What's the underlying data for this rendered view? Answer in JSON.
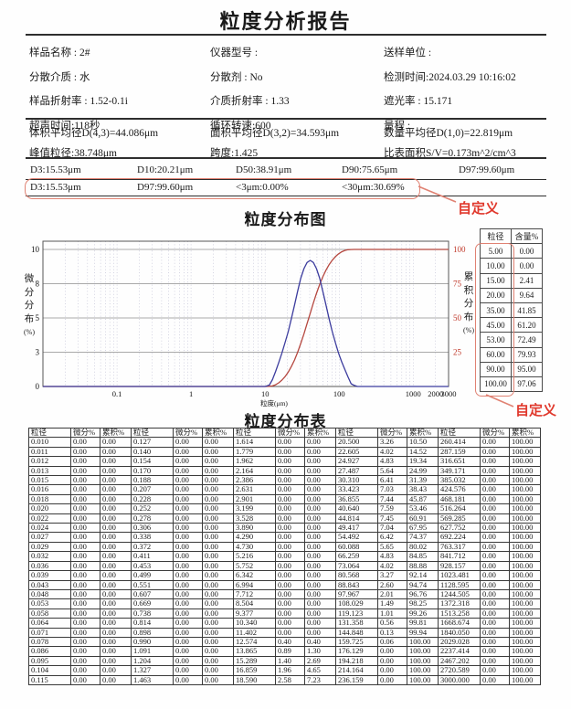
{
  "report": {
    "title": "粒度分析报告",
    "info_grid": [
      [
        "样品名称 : 2#",
        "仪器型号 :",
        "送样单位 :"
      ],
      [
        "分散介质 : 水",
        "分散剂 : No",
        "检测时间:2024.03.29 10:16:02"
      ],
      [
        "样品折射率 : 1.52-0.1i",
        "介质折射率 : 1.33",
        "遮光率 : 15.171"
      ],
      [
        "超声时间:118秒",
        "循环转速:600",
        "量程 :"
      ]
    ],
    "averages_grid": [
      [
        "体积平均径D(4,3)=44.086μm",
        "面积平均径D(3,2)=34.593μm",
        "数量平均径D(1,0)=22.819μm"
      ],
      [
        "峰值粒径:38.748μm",
        "跨度:1.425",
        "比表面积S/V=0.173m^2/cm^3"
      ]
    ],
    "d_values": [
      "D3:15.53μm",
      "D10:20.21μm",
      "D50:38.91μm",
      "D90:75.65μm",
      "D97:99.60μm"
    ],
    "custom_row": {
      "values": [
        "D3:15.53μm",
        "D97:99.60μm",
        "<3μm:0.00%",
        "<30μm:30.69%"
      ],
      "annotation": "自定义",
      "annotation_color": "#e0382c",
      "box_color": "#e08273"
    },
    "chart_section_title": "粒度分布图",
    "table_section_title": "粒度分布表"
  },
  "chart_data": {
    "type": "line",
    "x_axis": {
      "label": "粒度(μm)",
      "scale": "log",
      "min": 0.01,
      "max": 3000,
      "ticks": [
        "0.1",
        "1",
        "10",
        "100",
        "1000",
        "2000",
        "3000"
      ]
    },
    "y_left": {
      "label": "微分分布(%)",
      "min": 0,
      "max": 10,
      "ticks": [
        [
          "0",
          0
        ],
        [
          "3",
          0.25
        ],
        [
          "5",
          0.5
        ],
        [
          "8",
          0.75
        ],
        [
          "10",
          1
        ]
      ]
    },
    "y_right": {
      "label": "累积分布(%)",
      "min": 0,
      "max": 100,
      "color": "#c0392b",
      "ticks": [
        [
          "25",
          0.25
        ],
        [
          "50",
          0.5
        ],
        [
          "75",
          0.75
        ],
        [
          "100",
          1
        ]
      ]
    },
    "series": [
      {
        "name": "cumulative",
        "axis": "right",
        "color": "#b5473f",
        "points": [
          [
            0.01,
            0
          ],
          [
            10,
            0
          ],
          [
            11.4,
            0.1
          ],
          [
            12.57,
            0.4
          ],
          [
            13.87,
            1.3
          ],
          [
            15.29,
            2.69
          ],
          [
            16.86,
            4.65
          ],
          [
            18.59,
            7.23
          ],
          [
            20.5,
            10.5
          ],
          [
            22.61,
            14.52
          ],
          [
            24.93,
            19.34
          ],
          [
            27.49,
            24.99
          ],
          [
            30.31,
            31.39
          ],
          [
            33.42,
            38.43
          ],
          [
            36.86,
            45.87
          ],
          [
            40.64,
            53.46
          ],
          [
            44.81,
            60.91
          ],
          [
            49.42,
            67.95
          ],
          [
            54.49,
            74.37
          ],
          [
            60.09,
            80.02
          ],
          [
            66.26,
            84.85
          ],
          [
            73.06,
            88.88
          ],
          [
            80.57,
            92.14
          ],
          [
            88.84,
            94.74
          ],
          [
            97.97,
            96.76
          ],
          [
            108.03,
            98.25
          ],
          [
            119.12,
            99.26
          ],
          [
            131.36,
            99.81
          ],
          [
            144.85,
            99.94
          ],
          [
            159.73,
            100
          ],
          [
            3000,
            100
          ]
        ]
      },
      {
        "name": "differential",
        "axis": "left",
        "color": "#3c3c9e",
        "points": [
          [
            0.01,
            0
          ],
          [
            10,
            0
          ],
          [
            11.4,
            0.1
          ],
          [
            12.57,
            0.5
          ],
          [
            13.87,
            1.1
          ],
          [
            15.29,
            1.75
          ],
          [
            16.86,
            2.45
          ],
          [
            18.59,
            3.2
          ],
          [
            20.5,
            4.0
          ],
          [
            22.61,
            4.95
          ],
          [
            24.93,
            5.95
          ],
          [
            27.49,
            6.95
          ],
          [
            30.31,
            7.9
          ],
          [
            33.42,
            8.6
          ],
          [
            36.86,
            9.05
          ],
          [
            40.64,
            9.2
          ],
          [
            44.81,
            9.05
          ],
          [
            49.42,
            8.6
          ],
          [
            54.49,
            7.9
          ],
          [
            60.09,
            6.95
          ],
          [
            66.26,
            5.95
          ],
          [
            73.06,
            4.95
          ],
          [
            80.57,
            4.0
          ],
          [
            88.84,
            3.2
          ],
          [
            97.97,
            2.45
          ],
          [
            108.03,
            1.8
          ],
          [
            119.12,
            1.25
          ],
          [
            131.36,
            0.7
          ],
          [
            144.85,
            0.2
          ],
          [
            159.73,
            0.08
          ],
          [
            176.13,
            0
          ],
          [
            3000,
            0
          ]
        ]
      }
    ]
  },
  "side_table": {
    "headers": [
      "粒径",
      "含量%"
    ],
    "rows": [
      [
        "5.00",
        "0.00"
      ],
      [
        "10.00",
        "0.00"
      ],
      [
        "15.00",
        "2.41"
      ],
      [
        "20.00",
        "9.64"
      ],
      [
        "35.00",
        "41.85"
      ],
      [
        "45.00",
        "61.20"
      ],
      [
        "53.00",
        "72.49"
      ],
      [
        "60.00",
        "79.93"
      ],
      [
        "90.00",
        "95.00"
      ],
      [
        "100.00",
        "97.06"
      ]
    ],
    "annotation": "自定义"
  },
  "distribution_table": {
    "column_headers": [
      "粒径",
      "微分%",
      "累积%"
    ],
    "groups": [
      {
        "sizes": [
          "0.010",
          "0.011",
          "0.012",
          "0.013",
          "0.015",
          "0.016",
          "0.018",
          "0.020",
          "0.022",
          "0.024",
          "0.027",
          "0.029",
          "0.032",
          "0.036",
          "0.039",
          "0.043",
          "0.048",
          "0.053",
          "0.058",
          "0.064",
          "0.071",
          "0.078",
          "0.086",
          "0.095",
          "0.104",
          "0.115"
        ],
        "diff": [
          "0.00",
          "0.00",
          "0.00",
          "0.00",
          "0.00",
          "0.00",
          "0.00",
          "0.00",
          "0.00",
          "0.00",
          "0.00",
          "0.00",
          "0.00",
          "0.00",
          "0.00",
          "0.00",
          "0.00",
          "0.00",
          "0.00",
          "0.00",
          "0.00",
          "0.00",
          "0.00",
          "0.00",
          "0.00",
          "0.00"
        ],
        "cum": [
          "0.00",
          "0.00",
          "0.00",
          "0.00",
          "0.00",
          "0.00",
          "0.00",
          "0.00",
          "0.00",
          "0.00",
          "0.00",
          "0.00",
          "0.00",
          "0.00",
          "0.00",
          "0.00",
          "0.00",
          "0.00",
          "0.00",
          "0.00",
          "0.00",
          "0.00",
          "0.00",
          "0.00",
          "0.00",
          "0.00"
        ]
      },
      {
        "sizes": [
          "0.127",
          "0.140",
          "0.154",
          "0.170",
          "0.188",
          "0.207",
          "0.228",
          "0.252",
          "0.278",
          "0.306",
          "0.338",
          "0.372",
          "0.411",
          "0.453",
          "0.499",
          "0.551",
          "0.607",
          "0.669",
          "0.738",
          "0.814",
          "0.898",
          "0.990",
          "1.091",
          "1.204",
          "1.327",
          "1.463"
        ],
        "diff": [
          "0.00",
          "0.00",
          "0.00",
          "0.00",
          "0.00",
          "0.00",
          "0.00",
          "0.00",
          "0.00",
          "0.00",
          "0.00",
          "0.00",
          "0.00",
          "0.00",
          "0.00",
          "0.00",
          "0.00",
          "0.00",
          "0.00",
          "0.00",
          "0.00",
          "0.00",
          "0.00",
          "0.00",
          "0.00",
          "0.00"
        ],
        "cum": [
          "0.00",
          "0.00",
          "0.00",
          "0.00",
          "0.00",
          "0.00",
          "0.00",
          "0.00",
          "0.00",
          "0.00",
          "0.00",
          "0.00",
          "0.00",
          "0.00",
          "0.00",
          "0.00",
          "0.00",
          "0.00",
          "0.00",
          "0.00",
          "0.00",
          "0.00",
          "0.00",
          "0.00",
          "0.00",
          "0.00"
        ]
      },
      {
        "sizes": [
          "1.614",
          "1.779",
          "1.962",
          "2.164",
          "2.386",
          "2.631",
          "2.901",
          "3.199",
          "3.528",
          "3.890",
          "4.290",
          "4.730",
          "5.216",
          "5.752",
          "6.342",
          "6.994",
          "7.712",
          "8.504",
          "9.377",
          "10.340",
          "11.402",
          "12.574",
          "13.865",
          "15.289",
          "16.859",
          "18.590"
        ],
        "diff": [
          "0.00",
          "0.00",
          "0.00",
          "0.00",
          "0.00",
          "0.00",
          "0.00",
          "0.00",
          "0.00",
          "0.00",
          "0.00",
          "0.00",
          "0.00",
          "0.00",
          "0.00",
          "0.00",
          "0.00",
          "0.00",
          "0.00",
          "0.00",
          "0.00",
          "0.40",
          "0.89",
          "1.40",
          "1.96",
          "2.58"
        ],
        "cum": [
          "0.00",
          "0.00",
          "0.00",
          "0.00",
          "0.00",
          "0.00",
          "0.00",
          "0.00",
          "0.00",
          "0.00",
          "0.00",
          "0.00",
          "0.00",
          "0.00",
          "0.00",
          "0.00",
          "0.00",
          "0.00",
          "0.00",
          "0.00",
          "0.00",
          "0.40",
          "1.30",
          "2.69",
          "4.65",
          "7.23"
        ]
      },
      {
        "sizes": [
          "20.500",
          "22.605",
          "24.927",
          "27.487",
          "30.310",
          "33.423",
          "36.855",
          "40.640",
          "44.814",
          "49.417",
          "54.492",
          "60.088",
          "66.259",
          "73.064",
          "80.568",
          "88.843",
          "97.967",
          "108.029",
          "119.123",
          "131.358",
          "144.848",
          "159.725",
          "176.129",
          "194.218",
          "214.164",
          "236.159"
        ],
        "diff": [
          "3.26",
          "4.02",
          "4.83",
          "5.64",
          "6.41",
          "7.03",
          "7.44",
          "7.59",
          "7.45",
          "7.04",
          "6.42",
          "5.65",
          "4.83",
          "4.02",
          "3.27",
          "2.60",
          "2.01",
          "1.49",
          "1.01",
          "0.56",
          "0.13",
          "0.06",
          "0.00",
          "0.00",
          "0.00",
          "0.00"
        ],
        "cum": [
          "10.50",
          "14.52",
          "19.34",
          "24.99",
          "31.39",
          "38.43",
          "45.87",
          "53.46",
          "60.91",
          "67.95",
          "74.37",
          "80.02",
          "84.85",
          "88.88",
          "92.14",
          "94.74",
          "96.76",
          "98.25",
          "99.26",
          "99.81",
          "99.94",
          "100.00",
          "100.00",
          "100.00",
          "100.00",
          "100.00"
        ]
      },
      {
        "sizes": [
          "260.414",
          "287.159",
          "316.651",
          "349.171",
          "385.032",
          "424.576",
          "468.181",
          "516.264",
          "569.285",
          "627.752",
          "692.224",
          "763.317",
          "841.712",
          "928.157",
          "1023.481",
          "1128.595",
          "1244.505",
          "1372.318",
          "1513.258",
          "1668.674",
          "1840.050",
          "2029.028",
          "2237.414",
          "2467.202",
          "2720.589",
          "3000.000"
        ],
        "diff": [
          "0.00",
          "0.00",
          "0.00",
          "0.00",
          "0.00",
          "0.00",
          "0.00",
          "0.00",
          "0.00",
          "0.00",
          "0.00",
          "0.00",
          "0.00",
          "0.00",
          "0.00",
          "0.00",
          "0.00",
          "0.00",
          "0.00",
          "0.00",
          "0.00",
          "0.00",
          "0.00",
          "0.00",
          "0.00",
          "0.00"
        ],
        "cum": [
          "100.00",
          "100.00",
          "100.00",
          "100.00",
          "100.00",
          "100.00",
          "100.00",
          "100.00",
          "100.00",
          "100.00",
          "100.00",
          "100.00",
          "100.00",
          "100.00",
          "100.00",
          "100.00",
          "100.00",
          "100.00",
          "100.00",
          "100.00",
          "100.00",
          "100.00",
          "100.00",
          "100.00",
          "100.00",
          "100.00"
        ]
      }
    ]
  }
}
